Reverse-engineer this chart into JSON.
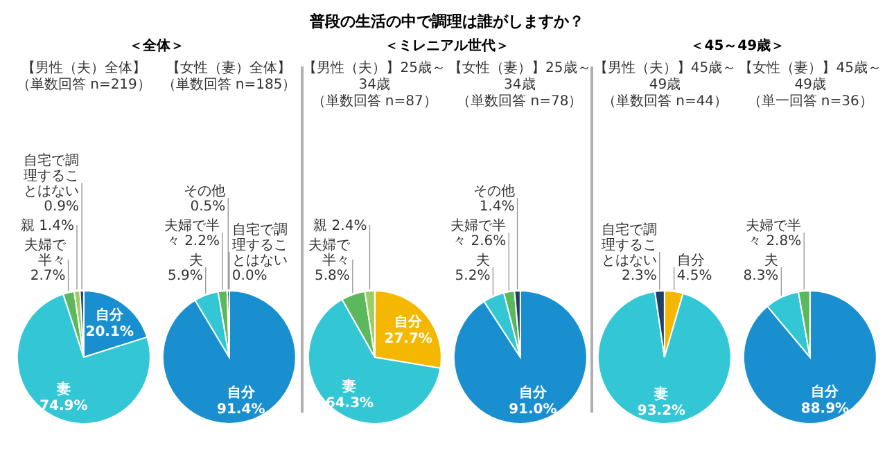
{
  "chart_data": [
    {
      "type": "pie",
      "annotations": [
        "普段の生活の中で調理は誰がしますか？",
        "＜全体＞"
      ],
      "title": "【男性（夫）全体】",
      "subtitle": "（単数回答 n=219）",
      "categories": [
        "自分",
        "妻",
        "夫婦で半々",
        "親",
        "自宅で調理することはない"
      ],
      "values": [
        20.1,
        74.9,
        2.7,
        1.4,
        0.9
      ],
      "value_labels": [
        "20.1%",
        "74.9%",
        "2.7%",
        "1.4%",
        "0.9%"
      ],
      "colors": [
        "#1a8fd0",
        "#33c7d6",
        "#5cb85c",
        "#9ccc65",
        "#1f3f66"
      ]
    },
    {
      "type": "pie",
      "title": "【女性（妻）全体】",
      "subtitle": "（単数回答 n=185）",
      "categories": [
        "自分",
        "夫",
        "夫婦で半々",
        "その他",
        "自宅で調理することはない"
      ],
      "values": [
        91.4,
        5.9,
        2.2,
        0.5,
        0.0
      ],
      "value_labels": [
        "91.4%",
        "5.9%",
        "2.2%",
        "0.5%",
        "0.0%"
      ],
      "colors": [
        "#1a8fd0",
        "#33c7d6",
        "#5cb85c",
        "#264478",
        "#1f3f66"
      ]
    },
    {
      "type": "pie",
      "annotations": [
        "＜ミレニアル世代＞"
      ],
      "title": "【男性（夫）】25歳～34歳",
      "subtitle": "（単数回答 n=87）",
      "categories": [
        "自分",
        "妻",
        "夫婦で半々",
        "親"
      ],
      "values": [
        27.7,
        64.3,
        5.8,
        2.4
      ],
      "value_labels": [
        "27.7%",
        "64.3%",
        "5.8%",
        "2.4%"
      ],
      "colors": [
        "#f5b800",
        "#33c7d6",
        "#5cb85c",
        "#9ccc65"
      ]
    },
    {
      "type": "pie",
      "title": "【女性（妻）】25歳～34歳",
      "subtitle": "（単数回答 n=78）",
      "categories": [
        "自分",
        "夫",
        "夫婦で半々",
        "その他"
      ],
      "values": [
        91.0,
        5.2,
        2.6,
        1.4
      ],
      "value_labels": [
        "91.0%",
        "5.2%",
        "2.6%",
        "1.4%"
      ],
      "colors": [
        "#1a8fd0",
        "#33c7d6",
        "#5cb85c",
        "#1f3f66"
      ]
    },
    {
      "type": "pie",
      "annotations": [
        "＜45～49歳＞"
      ],
      "title": "【男性（夫）】45歳～49歳",
      "subtitle": "（単数回答 n=44）",
      "categories": [
        "自分",
        "妻",
        "自宅で調理することはない"
      ],
      "values": [
        4.5,
        93.2,
        2.3
      ],
      "value_labels": [
        "4.5%",
        "93.2%",
        "2.3%"
      ],
      "colors": [
        "#f5b800",
        "#33c7d6",
        "#1f3f66"
      ]
    },
    {
      "type": "pie",
      "title": "【女性（妻）】45歳～49歳",
      "subtitle": "（単一回答 n=36）",
      "categories": [
        "自分",
        "夫",
        "夫婦で半々"
      ],
      "values": [
        88.9,
        8.3,
        2.8
      ],
      "value_labels": [
        "88.9%",
        "8.3%",
        "2.8%"
      ],
      "colors": [
        "#1a8fd0",
        "#33c7d6",
        "#5cb85c"
      ]
    }
  ]
}
